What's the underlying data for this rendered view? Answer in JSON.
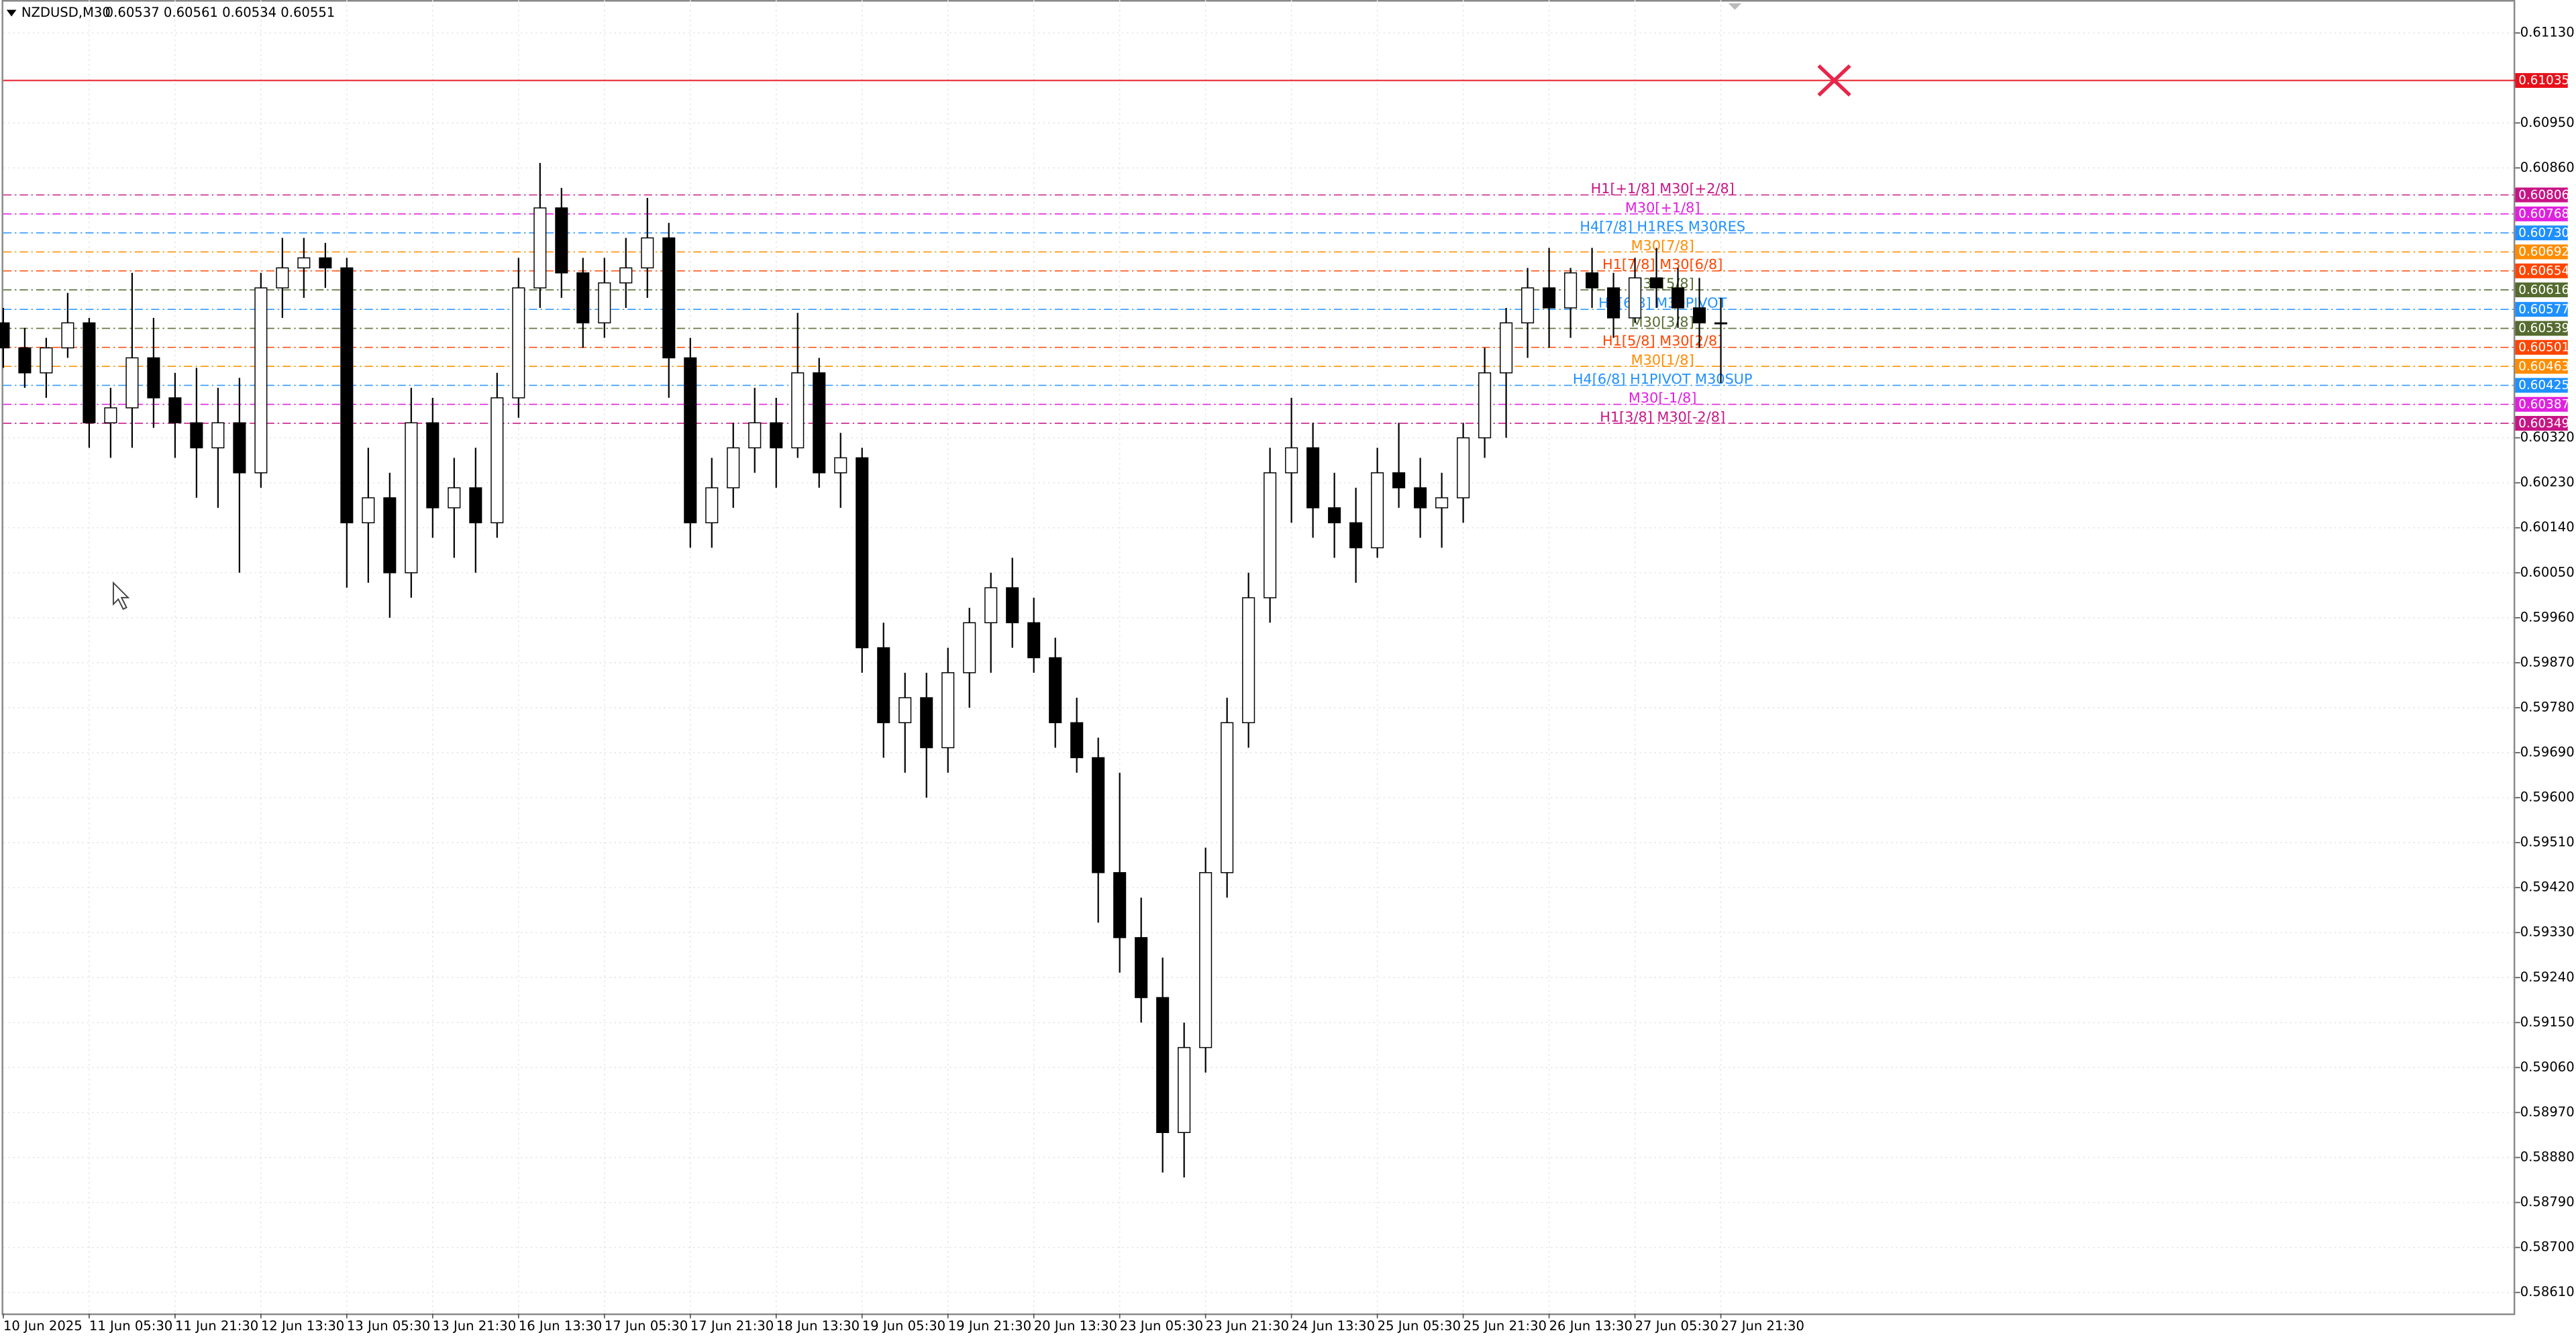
{
  "chart_data": {
    "type": "candlestick",
    "symbol": "NZDUSD,M30",
    "quote": "0.60537 0.60561 0.60534 0.60551",
    "color": "#000000",
    "grid": true,
    "xlim": [
      0,
      117
    ],
    "ylim": [
      0.58568,
      0.61196
    ],
    "xticks": [
      {
        "value": 0,
        "label": "10 Jun 2025"
      },
      {
        "value": 4,
        "label": "11 Jun 05:30"
      },
      {
        "value": 8,
        "label": "11 Jun 21:30"
      },
      {
        "value": 12,
        "label": "12 Jun 13:30"
      },
      {
        "value": 16,
        "label": "13 Jun 05:30"
      },
      {
        "value": 20,
        "label": "13 Jun 21:30"
      },
      {
        "value": 24,
        "label": "16 Jun 13:30"
      },
      {
        "value": 28,
        "label": "17 Jun 05:30"
      },
      {
        "value": 32,
        "label": "17 Jun 21:30"
      },
      {
        "value": 36,
        "label": "18 Jun 13:30"
      },
      {
        "value": 40,
        "label": "19 Jun 05:30"
      },
      {
        "value": 44,
        "label": "19 Jun 21:30"
      },
      {
        "value": 48,
        "label": "20 Jun 13:30"
      },
      {
        "value": 52,
        "label": "23 Jun 05:30"
      },
      {
        "value": 56,
        "label": "23 Jun 21:30"
      },
      {
        "value": 60,
        "label": "24 Jun 13:30"
      },
      {
        "value": 64,
        "label": "25 Jun 05:30"
      },
      {
        "value": 68,
        "label": "25 Jun 21:30"
      },
      {
        "value": 72,
        "label": "26 Jun 13:30"
      },
      {
        "value": 76,
        "label": "27 Jun 05:30"
      },
      {
        "value": 80,
        "label": "27 Jun 21:30"
      }
    ],
    "yticks": [
      {
        "value": 0.6113,
        "label": "0.61130"
      },
      {
        "value": 0.6095,
        "label": "0.60950"
      },
      {
        "value": 0.6086,
        "label": "0.60860"
      },
      {
        "value": 0.6032,
        "label": "0.60320"
      },
      {
        "value": 0.6023,
        "label": "0.60230"
      },
      {
        "value": 0.6014,
        "label": "0.60140"
      },
      {
        "value": 0.6005,
        "label": "0.60050"
      },
      {
        "value": 0.5996,
        "label": "0.59960"
      },
      {
        "value": 0.5987,
        "label": "0.59870"
      },
      {
        "value": 0.5978,
        "label": "0.59780"
      },
      {
        "value": 0.5969,
        "label": "0.59690"
      },
      {
        "value": 0.596,
        "label": "0.59600"
      },
      {
        "value": 0.5951,
        "label": "0.59510"
      },
      {
        "value": 0.5942,
        "label": "0.59420"
      },
      {
        "value": 0.5933,
        "label": "0.59330"
      },
      {
        "value": 0.5924,
        "label": "0.59240"
      },
      {
        "value": 0.5915,
        "label": "0.59150"
      },
      {
        "value": 0.5906,
        "label": "0.59060"
      },
      {
        "value": 0.5897,
        "label": "0.58970"
      },
      {
        "value": 0.5888,
        "label": "0.58880"
      },
      {
        "value": 0.5879,
        "label": "0.58790"
      },
      {
        "value": 0.587,
        "label": "0.58700"
      },
      {
        "value": 0.5861,
        "label": "0.58610"
      }
    ],
    "open": [
      0.6055,
      0.605,
      0.6045,
      0.605,
      0.6055,
      0.6035,
      0.6038,
      0.6048,
      0.604,
      0.6035,
      0.603,
      0.6035,
      0.6025,
      0.6062,
      0.6066,
      0.6068,
      0.6066,
      0.6015,
      0.602,
      0.6005,
      0.6035,
      0.6018,
      0.6022,
      0.6015,
      0.604,
      0.6062,
      0.6078,
      0.6065,
      0.6055,
      0.6063,
      0.6066,
      0.6072,
      0.6048,
      0.6015,
      0.6022,
      0.603,
      0.6035,
      0.603,
      0.6045,
      0.6025,
      0.6028,
      0.599,
      0.5975,
      0.598,
      0.597,
      0.5985,
      0.5995,
      0.6002,
      0.5995,
      0.5988,
      0.5975,
      0.5968,
      0.5945,
      0.5932,
      0.592,
      0.5893,
      0.591,
      0.5945,
      0.5975,
      0.6,
      0.6025,
      0.603,
      0.6018,
      0.6015,
      0.601,
      0.6025,
      0.6022,
      0.6018,
      0.602,
      0.6032,
      0.6045,
      0.6055,
      0.6062,
      0.6058,
      0.6065,
      0.6062,
      0.6056,
      0.6064,
      0.6062,
      0.6058,
      0.6055
    ],
    "high": [
      0.6058,
      0.6054,
      0.6052,
      0.6061,
      0.6056,
      0.6042,
      0.6065,
      0.6056,
      0.6045,
      0.6046,
      0.6042,
      0.6044,
      0.6065,
      0.6072,
      0.6072,
      0.6071,
      0.6068,
      0.603,
      0.6025,
      0.6042,
      0.604,
      0.6028,
      0.603,
      0.6045,
      0.6068,
      0.6087,
      0.6082,
      0.6068,
      0.6068,
      0.6072,
      0.608,
      0.6075,
      0.6052,
      0.6028,
      0.6035,
      0.6042,
      0.604,
      0.6057,
      0.6048,
      0.6033,
      0.603,
      0.5995,
      0.5985,
      0.5985,
      0.599,
      0.5998,
      0.6005,
      0.6008,
      0.6,
      0.5992,
      0.598,
      0.5972,
      0.5965,
      0.594,
      0.5928,
      0.5915,
      0.595,
      0.598,
      0.6005,
      0.603,
      0.604,
      0.6035,
      0.6025,
      0.6022,
      0.603,
      0.6035,
      0.6028,
      0.6025,
      0.6035,
      0.605,
      0.6058,
      0.6066,
      0.607,
      0.6066,
      0.607,
      0.6065,
      0.6068,
      0.607,
      0.6066,
      0.6064,
      0.606
    ],
    "low": [
      0.6046,
      0.6042,
      0.604,
      0.6048,
      0.603,
      0.6028,
      0.603,
      0.6034,
      0.6028,
      0.602,
      0.6018,
      0.6005,
      0.6022,
      0.6056,
      0.606,
      0.6062,
      0.6002,
      0.6003,
      0.5996,
      0.6,
      0.6012,
      0.6008,
      0.6005,
      0.6012,
      0.6036,
      0.6058,
      0.606,
      0.605,
      0.6052,
      0.6058,
      0.606,
      0.604,
      0.601,
      0.601,
      0.6018,
      0.6025,
      0.6022,
      0.6028,
      0.6022,
      0.6018,
      0.5985,
      0.5968,
      0.5965,
      0.596,
      0.5965,
      0.5978,
      0.5985,
      0.599,
      0.5985,
      0.597,
      0.5965,
      0.5935,
      0.5925,
      0.5915,
      0.5885,
      0.5884,
      0.5905,
      0.594,
      0.597,
      0.5995,
      0.6015,
      0.6012,
      0.6008,
      0.6003,
      0.6008,
      0.6018,
      0.6012,
      0.601,
      0.6015,
      0.6028,
      0.6032,
      0.6048,
      0.605,
      0.6052,
      0.6058,
      0.6052,
      0.6055,
      0.6058,
      0.6054,
      0.605,
      0.6043
    ],
    "close": [
      0.605,
      0.6045,
      0.605,
      0.6055,
      0.6035,
      0.6038,
      0.6048,
      0.604,
      0.6035,
      0.603,
      0.6035,
      0.6025,
      0.6062,
      0.6066,
      0.6068,
      0.6066,
      0.6015,
      0.602,
      0.6005,
      0.6035,
      0.6018,
      0.6022,
      0.6015,
      0.604,
      0.6062,
      0.6078,
      0.6065,
      0.6055,
      0.6063,
      0.6066,
      0.6072,
      0.6048,
      0.6015,
      0.6022,
      0.603,
      0.6035,
      0.603,
      0.6045,
      0.6025,
      0.6028,
      0.599,
      0.5975,
      0.598,
      0.597,
      0.5985,
      0.5995,
      0.6002,
      0.5995,
      0.5988,
      0.5975,
      0.5968,
      0.5945,
      0.5932,
      0.592,
      0.5893,
      0.591,
      0.5945,
      0.5975,
      0.6,
      0.6025,
      0.603,
      0.6018,
      0.6015,
      0.601,
      0.6025,
      0.6022,
      0.6018,
      0.602,
      0.6032,
      0.6045,
      0.6055,
      0.6062,
      0.6058,
      0.6065,
      0.6062,
      0.6056,
      0.6064,
      0.6062,
      0.6058,
      0.6055,
      0.6055
    ],
    "levels": [
      {
        "value": 0.61035,
        "price_label": "0.61035",
        "color": "#e8101a",
        "style": "solid"
      },
      {
        "value": 0.60806,
        "price_label": "0.60806",
        "label": "H1[+1/8] M30[+2/8]",
        "color": "#c71585",
        "style": "dashdot"
      },
      {
        "value": 0.60768,
        "price_label": "0.60768",
        "label": "M30[+1/8]",
        "color": "#e020e0",
        "style": "dashdot"
      },
      {
        "value": 0.6073,
        "price_label": "0.60730",
        "label": "H4[7/8] H1RES M30RES",
        "color": "#1e90ff",
        "style": "dashdot"
      },
      {
        "value": 0.60692,
        "price_label": "0.60692",
        "label": "M30[7/8]",
        "color": "#ff8c00",
        "style": "dashdot"
      },
      {
        "value": 0.60654,
        "price_label": "0.60654",
        "label": "H1[7/8] M30[6/8]",
        "color": "#ff4500",
        "style": "dashdot"
      },
      {
        "value": 0.60616,
        "price_label": "0.60616",
        "label": "M30[5/8]",
        "color": "#556b2f",
        "style": "dashdot"
      },
      {
        "value": 0.60577,
        "price_label": "0.60577",
        "label": "H1[6/8] M30PIVOT",
        "color": "#1e90ff",
        "style": "dashdot"
      },
      {
        "value": 0.60539,
        "price_label": "0.60539",
        "label": "M30[3/8]",
        "color": "#556b2f",
        "style": "dashdot"
      },
      {
        "value": 0.60501,
        "price_label": "0.60501",
        "label": "H1[5/8] M30[2/8]",
        "color": "#ff4500",
        "style": "dashdot"
      },
      {
        "value": 0.60463,
        "price_label": "0.60463",
        "label": "M30[1/8]",
        "color": "#ff8c00",
        "style": "dashdot"
      },
      {
        "value": 0.60425,
        "price_label": "0.60425",
        "label": "H4[6/8] H1PIVOT M30SUP",
        "color": "#1e90ff",
        "style": "dashdot"
      },
      {
        "value": 0.60387,
        "price_label": "0.60387",
        "label": "M30[-1/8]",
        "color": "#e020e0",
        "style": "dashdot"
      },
      {
        "value": 0.60349,
        "price_label": "0.60349",
        "label": "H1[3/8] M30[-2/8]",
        "color": "#c71585",
        "style": "dashdot"
      }
    ]
  }
}
